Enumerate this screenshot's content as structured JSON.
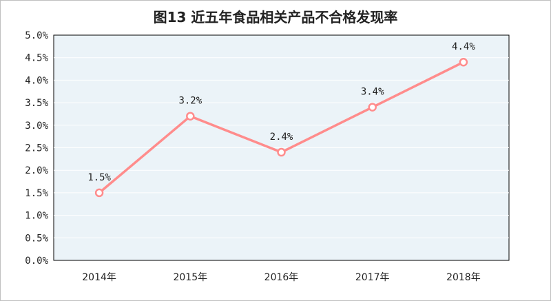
{
  "chart_data": {
    "type": "line",
    "title": "图13 近五年食品相关产品不合格发现率",
    "categories": [
      "2014年",
      "2015年",
      "2016年",
      "2017年",
      "2018年"
    ],
    "series": [
      {
        "values": [
          1.5,
          3.2,
          2.4,
          3.4,
          4.4
        ],
        "labels": [
          "1.5%",
          "3.2%",
          "2.4%",
          "3.4%",
          "4.4%"
        ],
        "color": "#ff8c8c"
      }
    ],
    "yticks": [
      "0.0%",
      "0.5%",
      "1.0%",
      "1.5%",
      "2.0%",
      "2.5%",
      "3.0%",
      "3.5%",
      "4.0%",
      "4.5%",
      "5.0%"
    ],
    "ylim": [
      0,
      5
    ],
    "xlabel": "",
    "ylabel": "",
    "grid": true,
    "plot_background": "#ebf3f8",
    "grid_color": "#ffffff"
  }
}
